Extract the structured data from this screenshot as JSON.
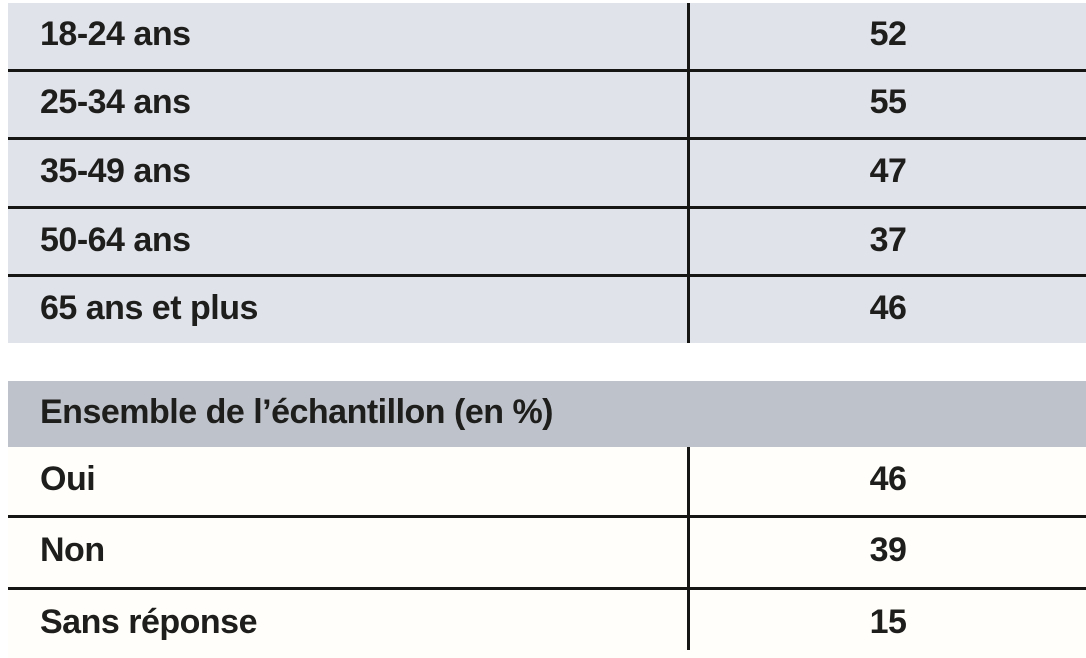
{
  "age_table": {
    "rows": [
      {
        "label": "18-24 ans",
        "value": "52"
      },
      {
        "label": "25-34 ans",
        "value": "55"
      },
      {
        "label": "35-49 ans",
        "value": "47"
      },
      {
        "label": "50-64 ans",
        "value": "37"
      },
      {
        "label": "65 ans et plus",
        "value": "46"
      }
    ]
  },
  "ensemble_table": {
    "header": "Ensemble de l’échantillon (en %)",
    "rows": [
      {
        "label": "Oui",
        "value": "46"
      },
      {
        "label": "Non",
        "value": "39"
      },
      {
        "label": "Sans réponse",
        "value": "15"
      }
    ]
  },
  "colors": {
    "age_row_bg": "#e1e3eb",
    "header_bg": "#bec2ca",
    "ensemble_row_bg": "#fffefa",
    "rule": "#161614",
    "text": "#1e1e1c"
  }
}
